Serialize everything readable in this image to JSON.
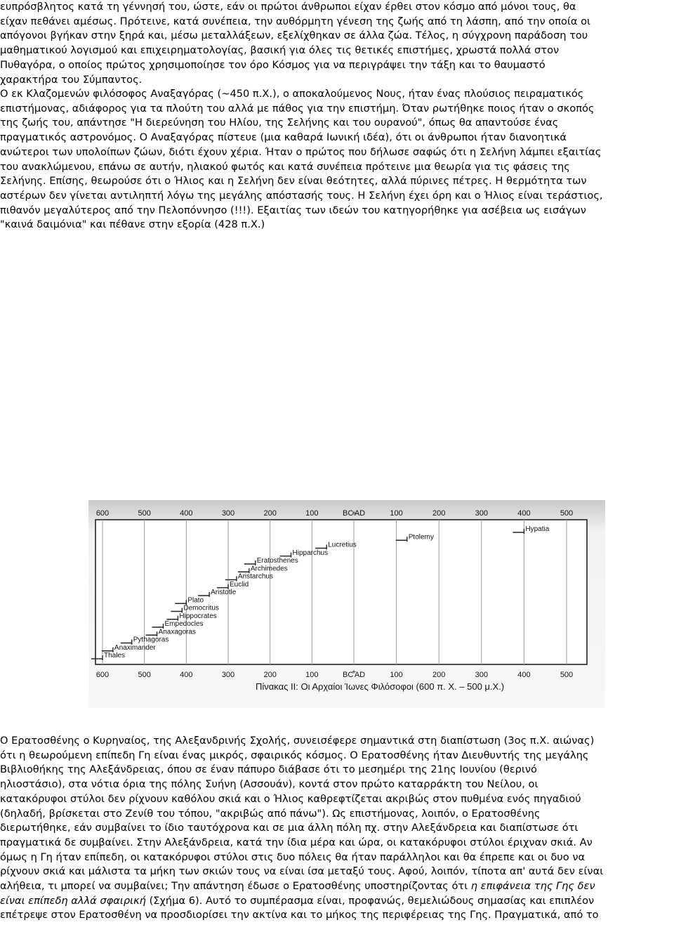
{
  "para1": [
    "ευπρόσβλητος κατά τη γέννησή του, ώστε, εάν οι πρώτοι άνθρωποι είχαν έρθει στον κόσμο από μόνοι τους, θα",
    "είχαν πεθάνει αμέσως. Πρότεινε, κατά συνέπεια, την αυθόρμητη γένεση της ζωής από τη λάσπη, από την οποία οι",
    "απόγονοι βγήκαν στην ξηρά και, μέσω μεταλλάξεων, εξελίχθηκαν σε άλλα ζώα. Τέλος, η σύγχρονη παράδοση του",
    "μαθηματικού λογισμού και επιχειρηματολογίας, βασική για όλες τις θετικές επιστήμες, χρωστά πολλά στον",
    "Πυθαγόρα, ο οποίος πρώτος χρησιμοποίησε τον όρο Κόσμος για να περιγράψει την τάξη και το θαυμαστό",
    "χαρακτήρα του Σύμπαντος."
  ],
  "para2": [
    "Ο εκ Κλαζομενών φιλόσοφος Αναξαγόρας (~450 π.Χ.), ο αποκαλούμενος Νους, ήταν ένας πλούσιος πειραματικός",
    "επιστήμονας, αδιάφορος για τα πλούτη του αλλά με πάθος για την επιστήμη. Όταν ρωτήθηκε ποιος ήταν ο σκοπός",
    "της ζωής του, απάντησε \"Η διερεύνηση του Ηλίου, της Σελήνης και του ουρανού\", όπως θα απαντούσε ένας",
    "πραγματικός αστρονόμος. Ο Αναξαγόρας πίστευε (μια καθαρά Ιωνική ιδέα), ότι οι άνθρωποι ήταν διανοητικά",
    "ανώτεροι των υπολοίπων ζώων, διότι έχουν χέρια. Ήταν ο πρώτος που δήλωσε σαφώς ότι η Σελήνη λάμπει εξαιτίας",
    "του ανακλώμενου, επάνω σε αυτήν, ηλιακού φωτός και κατά συνέπεια πρότεινε μια θεωρία για τις φάσεις της",
    "Σελήνης. Επίσης, θεωρούσε ότι ο Ήλιος και η Σελήνη δεν είναι θεότητες, αλλά πύρινες πέτρες. Η θερμότητα των",
    "αστέρων δεν γίνεται αντιληπτή λόγω της μεγάλης απόστασής τους. Η Σελήνη έχει όρη και ο Ήλιος είναι τεράστιος,",
    "πιθανόν μεγαλύτερος από την Πελοπόννησο (!!!). Εξαιτίας των ιδεών του κατηγορήθηκε για ασέβεια ως εισάγων",
    "\"καινά δαιμόνια\" και πέθανε στην εξορία (428 π.Χ.)"
  ],
  "figure": {
    "top_axis_labels": [
      "600",
      "500",
      "400",
      "300",
      "200",
      "100",
      "BC",
      "AD",
      "100",
      "200",
      "300",
      "400",
      "500"
    ],
    "bottom_axis_labels": [
      "600",
      "500",
      "400",
      "300",
      "200",
      "100",
      "BC",
      "AD",
      "100",
      "200",
      "300",
      "400",
      "500"
    ],
    "caption": "Πίνακας ΙΙ: Οι Αρχαίοι Ίωνες Φιλόσοφοι (600 π. Χ. – 500 μ.Χ.)",
    "philosophers": [
      {
        "name": "Hypatia",
        "year": 400
      },
      {
        "name": "Ptolemy",
        "year": 125
      },
      {
        "name": "Lucretius",
        "year": -65
      },
      {
        "name": "Hipparchus",
        "year": -150
      },
      {
        "name": "Eratosthenes",
        "year": -235
      },
      {
        "name": "Archimedes",
        "year": -250
      },
      {
        "name": "Aristarchus",
        "year": -280
      },
      {
        "name": "Euclid",
        "year": -300
      },
      {
        "name": "Aristotle",
        "year": -345
      },
      {
        "name": "Plato",
        "year": -400
      },
      {
        "name": "Democritus",
        "year": -410
      },
      {
        "name": "Hippocrates",
        "year": -420
      },
      {
        "name": "Empedocles",
        "year": -455
      },
      {
        "name": "Anaxagoras",
        "year": -470
      },
      {
        "name": "Pythagoras",
        "year": -530
      },
      {
        "name": "Anaximander",
        "year": -575
      },
      {
        "name": "Thales",
        "year": -600
      }
    ]
  },
  "para3": [
    "Ο Ερατοσθένης ο Κυρηναίος, της Αλεξανδρινής Σχολής, συνεισέφερε σημαντικά στη διαπίστωση (3ος π.Χ. αιώνας)",
    "ότι η θεωρούμενη επίπεδη Γη είναι ένας μικρός, σφαιρικός κόσμος. Ο Ερατοσθένης ήταν Διευθυντής της μεγάλης",
    "Βιβλιοθήκης της Αλεξάνδρειας, όπου σε έναν πάπυρο διάβασε ότι το μεσημέρι της 21ης Ιουνίου (θερινό",
    "ηλιοστάσιο), στα νότια όρια της πόλης Συήνη (Ασσουάν), κοντά στον πρώτο καταρράκτη του Νείλου, οι",
    "κατακόρυφοι στύλοι δεν ρίχνουν καθόλου σκιά και ο Ήλιος καθρεφτίζεται ακριβώς στον πυθμένα ενός πηγαδιού",
    "(δηλαδή, βρίσκεται στο Ζενίθ του τόπου, \"ακριβώς από πάνω\"). Ως επιστήμονας, λοιπόν, ο Ερατοσθένης",
    "διερωτήθηκε, εάν συμβαίνει το ίδιο ταυτόχρονα και σε μια άλλη πόλη πχ. στην Αλεξάνδρεια και διαπίστωσε ότι",
    "πραγματικά δε συμβαίνει. Στην Αλεξάνδρεια, κατά την ίδια μέρα και ώρα, οι κατακόρυφοι στύλοι έριχναν σκιά. Αν",
    "όμως η Γη ήταν επίπεδη, οι κατακόρυφοι στύλοι στις δυο πόλεις θα ήταν παράλληλοι και θα έπρεπε και οι δυο να",
    "ρίχνουν σκιά και μάλιστα τα μήκη των σκιών τους να είναι ίσα μεταξύ τους. Αφού, λοιπόν, τίποτα απ' αυτά δεν είναι",
    "αλήθεια, τι μπορεί να συμβαίνει; Την απάντηση έδωσε ο Ερατοσθένης υποστηρίζοντας ότι",
    "η επιφάνεια της Γης δεν",
    "είναι επίπεδη αλλά σφαιρική",
    "(Σχήμα 6). Αυτό το συμπέρασμα είναι, προφανώς, θεμελιώδους σημασίας και επιπλέον",
    "επέτρεψε στον Ερατοσθένη να προσδιορίσει την ακτίνα και το μήκος της περιφέρειας της Γης. Πραγματικά, από το"
  ]
}
